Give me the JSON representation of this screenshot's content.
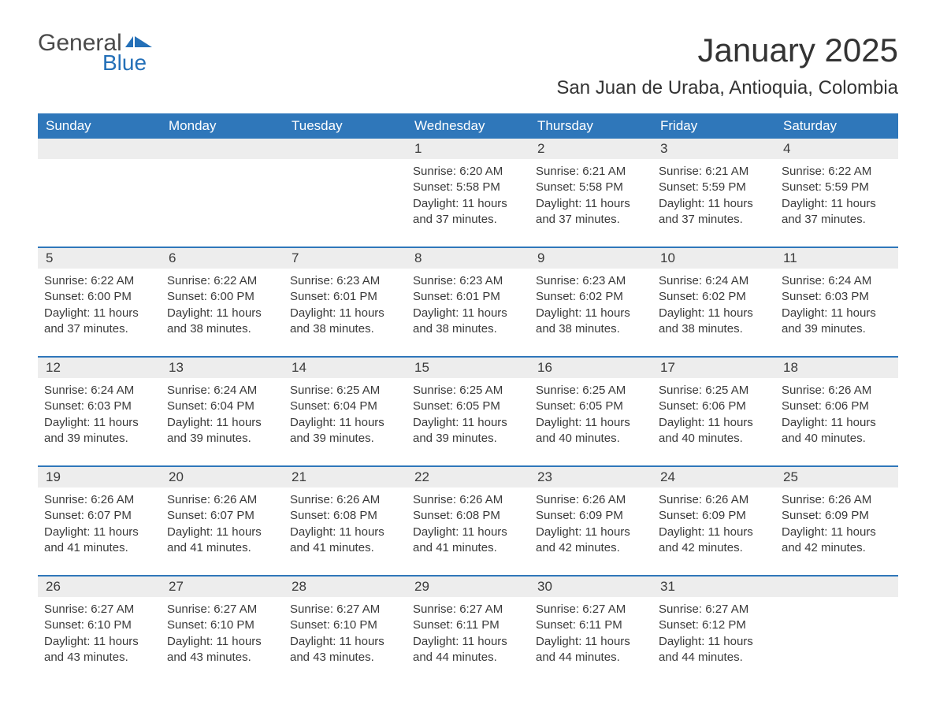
{
  "logo": {
    "text1": "General",
    "text2": "Blue",
    "flag_color": "#2470b8"
  },
  "title": "January 2025",
  "location": "San Juan de Uraba, Antioquia, Colombia",
  "colors": {
    "header_bg": "#2f77ba",
    "header_fg": "#ffffff",
    "daynum_bg": "#ededed",
    "rule": "#2f77ba",
    "text": "#333333"
  },
  "day_headers": [
    "Sunday",
    "Monday",
    "Tuesday",
    "Wednesday",
    "Thursday",
    "Friday",
    "Saturday"
  ],
  "weeks": [
    [
      null,
      null,
      null,
      {
        "n": "1",
        "sr": "6:20 AM",
        "ss": "5:58 PM",
        "dl": "11 hours and 37 minutes."
      },
      {
        "n": "2",
        "sr": "6:21 AM",
        "ss": "5:58 PM",
        "dl": "11 hours and 37 minutes."
      },
      {
        "n": "3",
        "sr": "6:21 AM",
        "ss": "5:59 PM",
        "dl": "11 hours and 37 minutes."
      },
      {
        "n": "4",
        "sr": "6:22 AM",
        "ss": "5:59 PM",
        "dl": "11 hours and 37 minutes."
      }
    ],
    [
      {
        "n": "5",
        "sr": "6:22 AM",
        "ss": "6:00 PM",
        "dl": "11 hours and 37 minutes."
      },
      {
        "n": "6",
        "sr": "6:22 AM",
        "ss": "6:00 PM",
        "dl": "11 hours and 38 minutes."
      },
      {
        "n": "7",
        "sr": "6:23 AM",
        "ss": "6:01 PM",
        "dl": "11 hours and 38 minutes."
      },
      {
        "n": "8",
        "sr": "6:23 AM",
        "ss": "6:01 PM",
        "dl": "11 hours and 38 minutes."
      },
      {
        "n": "9",
        "sr": "6:23 AM",
        "ss": "6:02 PM",
        "dl": "11 hours and 38 minutes."
      },
      {
        "n": "10",
        "sr": "6:24 AM",
        "ss": "6:02 PM",
        "dl": "11 hours and 38 minutes."
      },
      {
        "n": "11",
        "sr": "6:24 AM",
        "ss": "6:03 PM",
        "dl": "11 hours and 39 minutes."
      }
    ],
    [
      {
        "n": "12",
        "sr": "6:24 AM",
        "ss": "6:03 PM",
        "dl": "11 hours and 39 minutes."
      },
      {
        "n": "13",
        "sr": "6:24 AM",
        "ss": "6:04 PM",
        "dl": "11 hours and 39 minutes."
      },
      {
        "n": "14",
        "sr": "6:25 AM",
        "ss": "6:04 PM",
        "dl": "11 hours and 39 minutes."
      },
      {
        "n": "15",
        "sr": "6:25 AM",
        "ss": "6:05 PM",
        "dl": "11 hours and 39 minutes."
      },
      {
        "n": "16",
        "sr": "6:25 AM",
        "ss": "6:05 PM",
        "dl": "11 hours and 40 minutes."
      },
      {
        "n": "17",
        "sr": "6:25 AM",
        "ss": "6:06 PM",
        "dl": "11 hours and 40 minutes."
      },
      {
        "n": "18",
        "sr": "6:26 AM",
        "ss": "6:06 PM",
        "dl": "11 hours and 40 minutes."
      }
    ],
    [
      {
        "n": "19",
        "sr": "6:26 AM",
        "ss": "6:07 PM",
        "dl": "11 hours and 41 minutes."
      },
      {
        "n": "20",
        "sr": "6:26 AM",
        "ss": "6:07 PM",
        "dl": "11 hours and 41 minutes."
      },
      {
        "n": "21",
        "sr": "6:26 AM",
        "ss": "6:08 PM",
        "dl": "11 hours and 41 minutes."
      },
      {
        "n": "22",
        "sr": "6:26 AM",
        "ss": "6:08 PM",
        "dl": "11 hours and 41 minutes."
      },
      {
        "n": "23",
        "sr": "6:26 AM",
        "ss": "6:09 PM",
        "dl": "11 hours and 42 minutes."
      },
      {
        "n": "24",
        "sr": "6:26 AM",
        "ss": "6:09 PM",
        "dl": "11 hours and 42 minutes."
      },
      {
        "n": "25",
        "sr": "6:26 AM",
        "ss": "6:09 PM",
        "dl": "11 hours and 42 minutes."
      }
    ],
    [
      {
        "n": "26",
        "sr": "6:27 AM",
        "ss": "6:10 PM",
        "dl": "11 hours and 43 minutes."
      },
      {
        "n": "27",
        "sr": "6:27 AM",
        "ss": "6:10 PM",
        "dl": "11 hours and 43 minutes."
      },
      {
        "n": "28",
        "sr": "6:27 AM",
        "ss": "6:10 PM",
        "dl": "11 hours and 43 minutes."
      },
      {
        "n": "29",
        "sr": "6:27 AM",
        "ss": "6:11 PM",
        "dl": "11 hours and 44 minutes."
      },
      {
        "n": "30",
        "sr": "6:27 AM",
        "ss": "6:11 PM",
        "dl": "11 hours and 44 minutes."
      },
      {
        "n": "31",
        "sr": "6:27 AM",
        "ss": "6:12 PM",
        "dl": "11 hours and 44 minutes."
      },
      null
    ]
  ],
  "labels": {
    "sunrise": "Sunrise: ",
    "sunset": "Sunset: ",
    "daylight": "Daylight: "
  }
}
